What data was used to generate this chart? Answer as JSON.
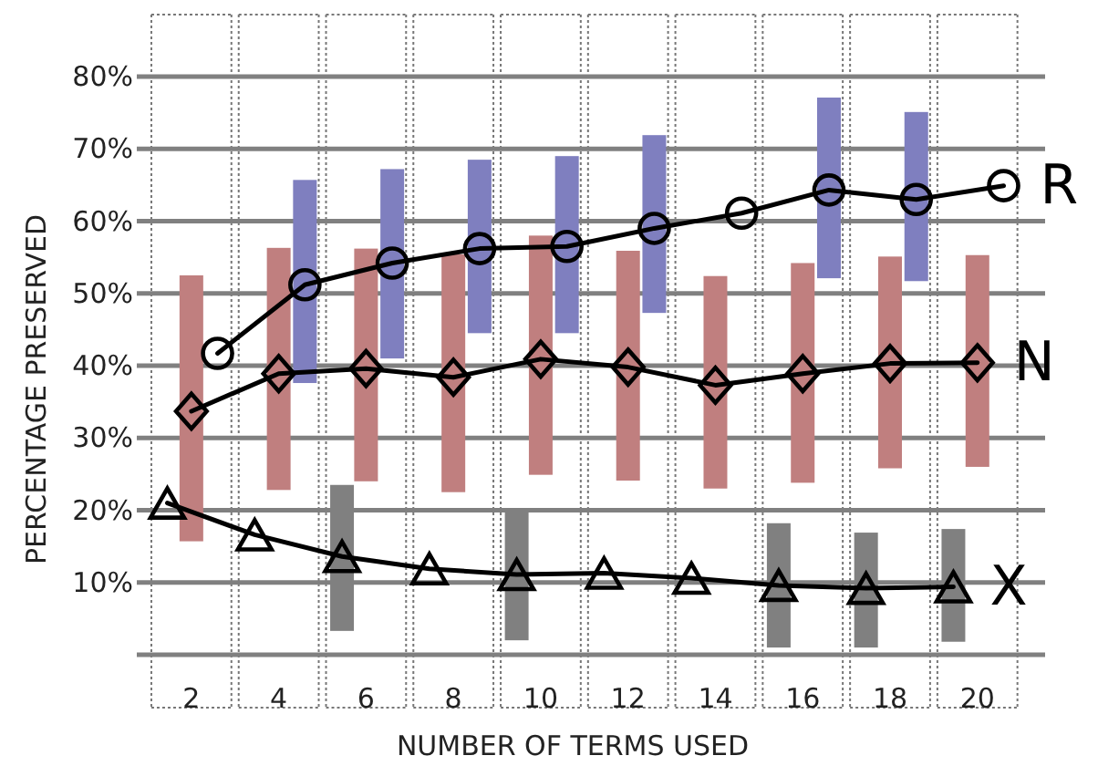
{
  "chart_data": {
    "type": "line",
    "xlabel": "NUMBER OF TERMS USED",
    "ylabel": "PERCENTAGE PRESERVED",
    "xlim": [
      0.75,
      21.55
    ],
    "legend": false,
    "xticks": [
      2,
      4,
      6,
      8,
      10,
      12,
      14,
      16,
      18,
      20
    ],
    "ylim": [
      0,
      80
    ],
    "yticks": [
      {
        "value": 0,
        "label": null
      },
      {
        "value": 10,
        "label": "10%"
      },
      {
        "value": 20,
        "label": "20%"
      },
      {
        "value": 30,
        "label": "30%"
      },
      {
        "value": 40,
        "label": "40%"
      },
      {
        "value": 50,
        "label": "50%"
      },
      {
        "value": 60,
        "label": "60%"
      },
      {
        "value": 70,
        "label": "70%"
      },
      {
        "value": 80,
        "label": "80%"
      }
    ],
    "grid": "y",
    "series": [
      {
        "type": "bar",
        "color": "#808080",
        "x": [
          null,
          null,
          5.45,
          null,
          9.45,
          null,
          null,
          15.45,
          17.45,
          19.45
        ],
        "base": [
          null,
          null,
          3.3,
          null,
          2.0,
          null,
          null,
          1.0,
          1.0,
          1.8
        ],
        "values": [
          null,
          null,
          20.2,
          null,
          18.2,
          null,
          null,
          17.2,
          15.9,
          15.6
        ]
      },
      {
        "type": "bar",
        "color": "#c07f7f",
        "x": [
          2,
          4,
          6,
          8,
          10,
          12,
          14,
          16,
          18,
          20
        ],
        "base": [
          15.7,
          22.8,
          24.0,
          22.5,
          24.9,
          24.1,
          23.0,
          23.8,
          25.8,
          26.0
        ],
        "values": [
          36.8,
          33.5,
          32.2,
          32.9,
          33.1,
          31.8,
          29.4,
          30.4,
          29.3,
          29.3
        ]
      },
      {
        "type": "bar",
        "color": "#7f7fbf",
        "x": [
          null,
          4.6,
          6.6,
          8.6,
          10.6,
          12.6,
          null,
          16.6,
          18.6,
          null
        ],
        "base": [
          null,
          37.6,
          41.0,
          44.5,
          44.5,
          47.3,
          null,
          52.1,
          51.7,
          null
        ],
        "values": [
          null,
          28.1,
          26.2,
          24.0,
          24.5,
          24.6,
          null,
          25.0,
          23.4,
          null
        ]
      },
      {
        "name": "X",
        "color": "#000000",
        "marker": "triangle",
        "x": [
          1.45,
          3.45,
          5.45,
          7.45,
          9.45,
          11.45,
          13.45,
          15.45,
          17.45,
          19.45
        ],
        "values": [
          21.0,
          16.6,
          13.6,
          11.9,
          11.1,
          11.3,
          10.6,
          9.6,
          9.2,
          9.4
        ]
      },
      {
        "name": "N",
        "color": "#000000",
        "marker": "diamond",
        "x": [
          2,
          4,
          6,
          8,
          10,
          12,
          14,
          16,
          18,
          20
        ],
        "values": [
          33.7,
          38.9,
          39.6,
          38.4,
          40.9,
          39.8,
          37.3,
          38.9,
          40.3,
          40.4
        ]
      },
      {
        "name": "R",
        "color": "#000000",
        "marker": "circle",
        "x": [
          2.6,
          4.6,
          6.6,
          8.6,
          10.6,
          12.6,
          14.6,
          16.6,
          18.6,
          20.6
        ],
        "values": [
          41.7,
          51.2,
          54.2,
          56.2,
          56.5,
          59.0,
          61.1,
          64.3,
          63.0,
          64.9
        ]
      }
    ]
  }
}
